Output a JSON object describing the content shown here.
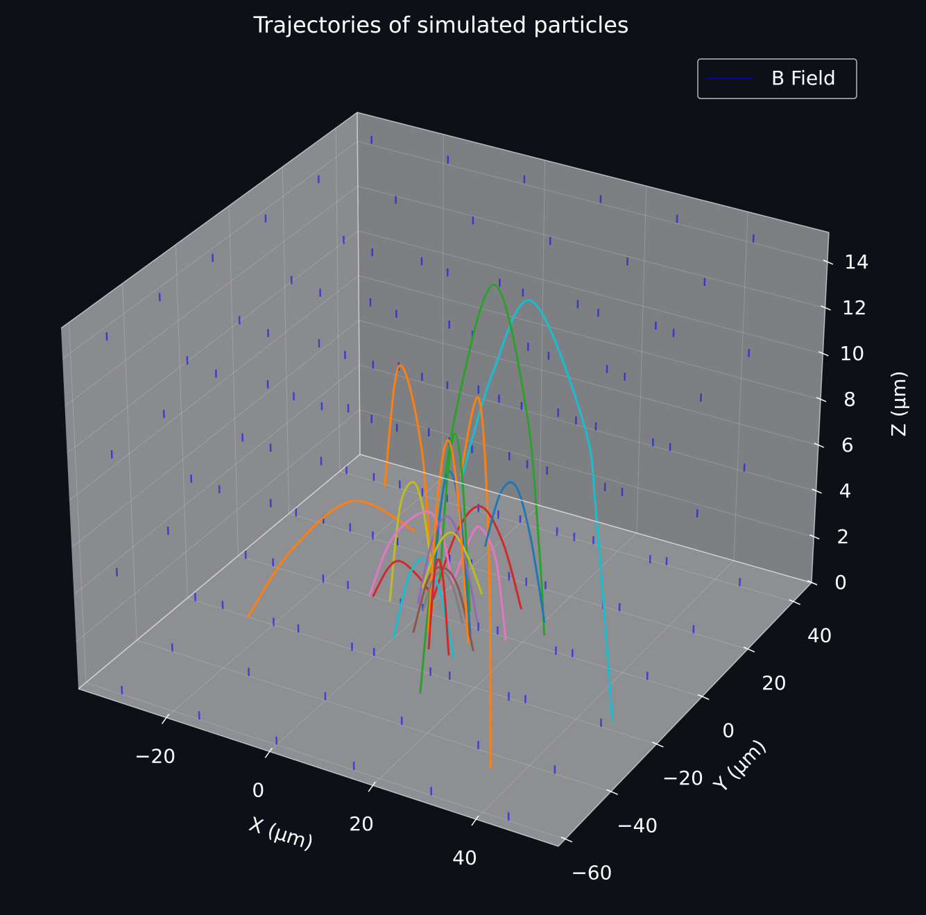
{
  "chart_data": {
    "type": "line3d",
    "title": "Trajectories of simulated particles",
    "xlabel": "X (µm)",
    "ylabel": "Y (µm)",
    "zlabel": "Z (µm)",
    "xlim": [
      -37,
      56
    ],
    "ylim": [
      -63,
      48
    ],
    "zlim": [
      0,
      15.3
    ],
    "xticks": [
      {
        "value": -20,
        "label": "−20"
      },
      0,
      20,
      40
    ],
    "yticks": [
      {
        "value": -60,
        "label": "−60"
      },
      {
        "value": -40,
        "label": "−40"
      },
      {
        "value": -20,
        "label": "−20"
      },
      0,
      20,
      40
    ],
    "zticks": [
      0,
      2,
      4,
      6,
      8,
      10,
      12,
      14
    ],
    "grid": true,
    "legend": "upper right",
    "quiver": {
      "name": "B Field",
      "color": "#0000ff",
      "length": 0.35,
      "x": [
        -30,
        -15,
        0,
        15,
        30,
        45
      ],
      "y": [
        -60,
        -40,
        -20,
        0,
        20,
        40
      ],
      "z": [
        0,
        5,
        10,
        15
      ]
    },
    "series": [
      {
        "color": "#17becf",
        "x": [
          15.8,
          21.9,
          29.3,
          39.4,
          42.1,
          45.9
        ],
        "y": [
          -17,
          -17,
          -17,
          -17,
          -17,
          -17
        ],
        "z": [
          8.3,
          13.3,
          16.8,
          12.2,
          8.4,
          0
        ]
      },
      {
        "color": "#2ca02c",
        "x": [
          13.9,
          16.8,
          21.6,
          28.3,
          34.4,
          37.1,
          38.2
        ],
        "y": [
          -30,
          -30,
          -30,
          -30,
          -30,
          -30,
          -30
        ],
        "z": [
          0.3,
          6.4,
          13.4,
          18.6,
          13.7,
          7.9,
          4.4
        ]
      },
      {
        "color": "#ff7f0e",
        "x": [
          -25,
          -16,
          -3.8,
          8.3
        ],
        "y": [
          -20,
          -20,
          -20,
          -20
        ],
        "z": [
          0,
          3.5,
          6.4,
          5.9
        ]
      },
      {
        "color": "#ff7f0e",
        "x": [
          2.4,
          5.4,
          9.7,
          11.7
        ],
        "y": [
          -20,
          -20,
          -20,
          -20
        ],
        "z": [
          7.4,
          12.8,
          9.4,
          2.8
        ]
      },
      {
        "color": "#ff7f0e",
        "x": [
          28.9,
          32.4,
          34.3,
          34.7
        ],
        "y": [
          -45,
          -45,
          -45,
          -45
        ],
        "z": [
          11.9,
          15.4,
          9.2,
          0
        ]
      },
      {
        "color": "#bcbd22",
        "x": [
          -6.6,
          -4.5,
          -1.9,
          0,
          1.5
        ],
        "y": [
          0,
          0,
          0,
          0,
          0
        ],
        "z": [
          0,
          4.2,
          5.5,
          4.6,
          2.5
        ]
      },
      {
        "color": "#d62728",
        "x": [
          -10,
          -7,
          -4.5,
          -1,
          2
        ],
        "y": [
          0,
          0,
          0,
          0,
          0
        ],
        "z": [
          0,
          1.4,
          1.9,
          1.5,
          0.8
        ]
      },
      {
        "color": "#d62728",
        "x": [
          2.1,
          7,
          11.6,
          16,
          19.7
        ],
        "y": [
          0,
          0,
          0,
          0,
          0
        ],
        "z": [
          0.7,
          4,
          5.3,
          4,
          1.4
        ]
      },
      {
        "color": "#e377c2",
        "x": [
          -10.7,
          -6,
          0.8,
          4,
          6
        ],
        "y": [
          0,
          0,
          0,
          0,
          0
        ],
        "z": [
          0,
          2.8,
          4.4,
          3.5,
          1.5
        ]
      },
      {
        "color": "#e377c2",
        "x": [
          8,
          12,
          14,
          17,
          19
        ],
        "y": [
          -5,
          -5,
          -5,
          -5,
          -5
        ],
        "z": [
          2,
          4.5,
          5,
          3.8,
          0.5
        ]
      },
      {
        "color": "#1f77b4",
        "x": [
          3,
          5,
          6.9,
          9,
          11
        ],
        "y": [
          -3,
          -3,
          -3,
          -3,
          -3
        ],
        "z": [
          0,
          5,
          6.8,
          5,
          0
        ]
      },
      {
        "color": "#1f77b4",
        "x": [
          10,
          13,
          16,
          19,
          22
        ],
        "y": [
          5,
          5,
          5,
          5,
          5
        ],
        "z": [
          3,
          5.5,
          6,
          4,
          0.5
        ]
      },
      {
        "color": "#2ca02c",
        "x": [
          1,
          2.5,
          4,
          5.5,
          7
        ],
        "y": [
          5,
          5,
          5,
          5,
          5
        ],
        "z": [
          1,
          5.5,
          7.5,
          5.5,
          0
        ]
      },
      {
        "color": "#8c564b",
        "x": [
          2,
          5,
          8,
          11,
          14
        ],
        "y": [
          -8,
          -8,
          -8,
          -8,
          -8
        ],
        "z": [
          0,
          2.5,
          3.2,
          2.5,
          0
        ]
      },
      {
        "color": "#17becf",
        "x": [
          0,
          3,
          6,
          9,
          12
        ],
        "y": [
          -12,
          -12,
          -12,
          -12,
          -12
        ],
        "z": [
          0,
          2.8,
          3.8,
          2.8,
          0
        ]
      },
      {
        "color": "#9467bd",
        "x": [
          -2,
          1,
          4,
          7,
          10
        ],
        "y": [
          2,
          2,
          2,
          2,
          2
        ],
        "z": [
          0,
          3,
          4.2,
          3,
          0
        ]
      },
      {
        "color": "#bcbd22",
        "x": [
          -4,
          -1,
          2,
          5,
          8
        ],
        "y": [
          8,
          8,
          8,
          8,
          8
        ],
        "z": [
          0,
          2,
          2.8,
          2,
          0.5
        ]
      },
      {
        "color": "#ff7f0e",
        "x": [
          4,
          6,
          8,
          10,
          12
        ],
        "y": [
          -6,
          -6,
          -6,
          -6,
          -6
        ],
        "z": [
          0,
          6,
          8.5,
          6,
          0
        ]
      },
      {
        "color": "#7f7f7f",
        "x": [
          0,
          2,
          4,
          6,
          8
        ],
        "y": [
          0,
          0,
          0,
          0,
          0
        ],
        "z": [
          0,
          1.5,
          2,
          1.5,
          0
        ]
      },
      {
        "color": "#d62728",
        "x": [
          7,
          8,
          9,
          10,
          11
        ],
        "y": [
          -12,
          -12,
          -12,
          -12,
          -12
        ],
        "z": [
          0,
          3,
          4,
          3,
          0
        ]
      }
    ]
  }
}
